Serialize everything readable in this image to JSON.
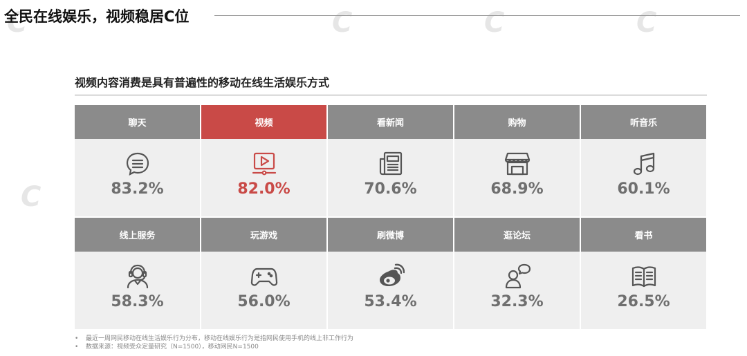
{
  "page_title": "全民在线娱乐，视频稳居C位",
  "subtitle": "视频内容消费是具有普遍性的移动在线生活娱乐方式",
  "colors": {
    "header_gray": "#8b8b8b",
    "accent_red": "#c94a47",
    "cell_bg": "#efefef"
  },
  "categories": [
    {
      "label": "聊天",
      "value": "83.2%",
      "icon": "chat-bubble-icon",
      "highlight": false
    },
    {
      "label": "视频",
      "value": "82.0%",
      "icon": "video-play-icon",
      "highlight": true
    },
    {
      "label": "看新闻",
      "value": "70.6%",
      "icon": "newspaper-icon",
      "highlight": false
    },
    {
      "label": "购物",
      "value": "68.9%",
      "icon": "storefront-icon",
      "highlight": false
    },
    {
      "label": "听音乐",
      "value": "60.1%",
      "icon": "music-note-icon",
      "highlight": false
    },
    {
      "label": "线上服务",
      "value": "58.3%",
      "icon": "customer-service-icon",
      "highlight": false
    },
    {
      "label": "玩游戏",
      "value": "56.0%",
      "icon": "gamepad-icon",
      "highlight": false
    },
    {
      "label": "刷微博",
      "value": "53.4%",
      "icon": "weibo-icon",
      "highlight": false
    },
    {
      "label": "逛论坛",
      "value": "32.3%",
      "icon": "forum-user-icon",
      "highlight": false
    },
    {
      "label": "看书",
      "value": "26.5%",
      "icon": "open-book-icon",
      "highlight": false
    }
  ],
  "chart_data": {
    "type": "table",
    "title": "视频内容消费是具有普遍性的移动在线生活娱乐方式",
    "categories": [
      "聊天",
      "视频",
      "看新闻",
      "购物",
      "听音乐",
      "线上服务",
      "玩游戏",
      "刷微博",
      "逛论坛",
      "看书"
    ],
    "values": [
      83.2,
      82.0,
      70.6,
      68.9,
      60.1,
      58.3,
      56.0,
      53.4,
      32.3,
      26.5
    ],
    "unit": "%"
  },
  "notes": [
    {
      "bullet": "•",
      "text": "最近一周网民移动在线生活娱乐行为分布，移动在线娱乐行为是指网民使用手机的线上非工作行为"
    },
    {
      "bullet": "•",
      "text": "数据来源：视频受众定量研究（N=1500），移动网民N=1500"
    }
  ]
}
